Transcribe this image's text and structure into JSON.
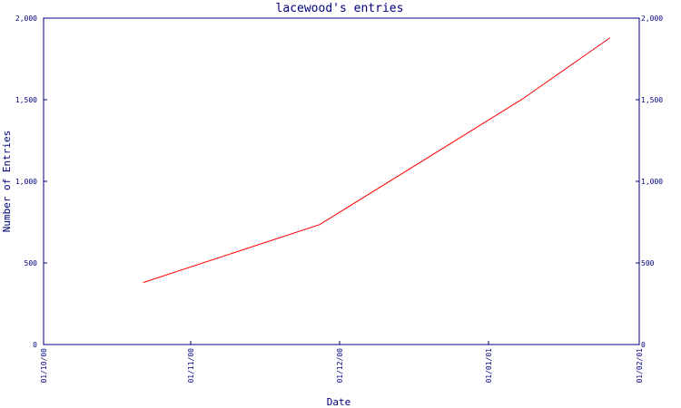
{
  "chart_data": {
    "type": "line",
    "title": "lacewood's entries",
    "xlabel": "Date",
    "ylabel": "Number of Entries",
    "x_ticks": [
      "01/10/00",
      "01/11/00",
      "01/12/00",
      "01/01/01",
      "01/02/01"
    ],
    "y_ticks": [
      "0",
      "500",
      "1,000",
      "1,500",
      "2,000"
    ],
    "ylim": [
      0,
      2000
    ],
    "xlim": [
      "2000-10-01",
      "2001-02-01"
    ],
    "grid": false,
    "series": [
      {
        "color": "#ff0000",
        "points": [
          {
            "x": "2000-10-22",
            "y": 380
          },
          {
            "x": "2000-11-27",
            "y": 735
          },
          {
            "x": "2001-01-08",
            "y": 1505
          },
          {
            "x": "2001-01-26",
            "y": 1880
          }
        ]
      }
    ]
  }
}
